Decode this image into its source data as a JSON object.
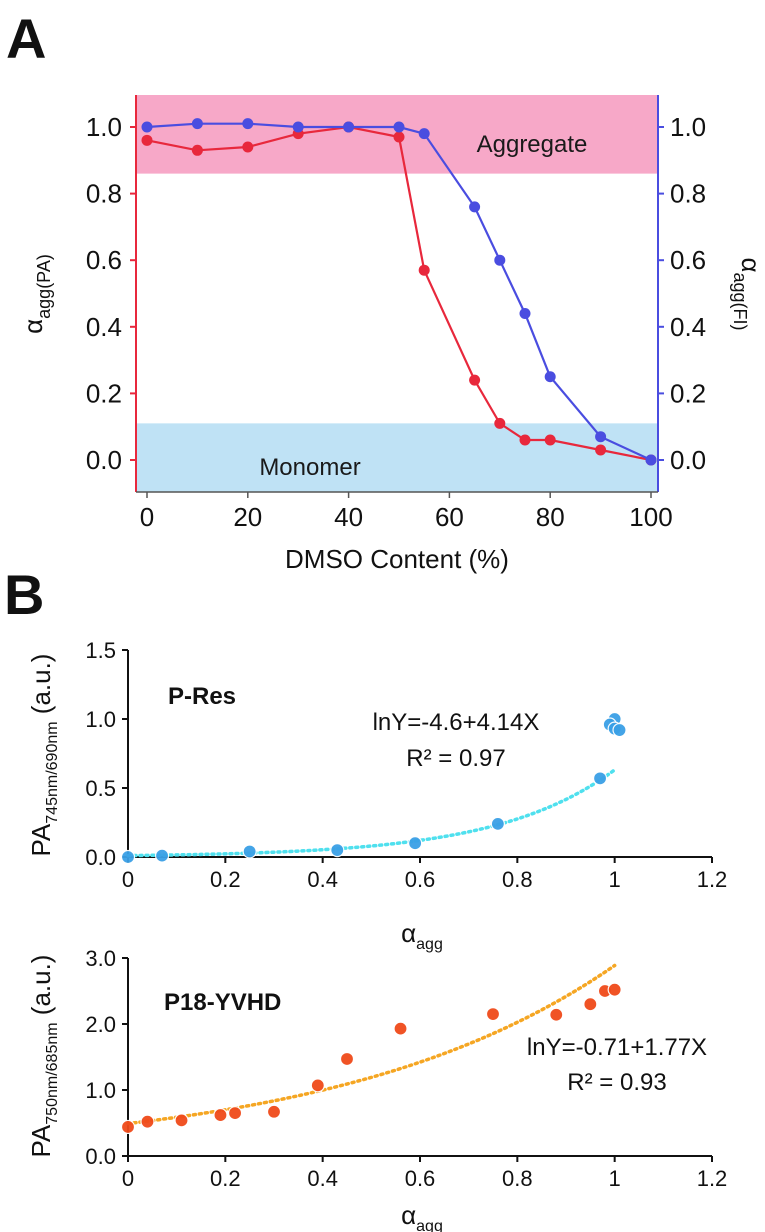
{
  "panels": {
    "a": "A",
    "b": "B"
  },
  "chart_data": [
    {
      "type": "line",
      "panel": "A",
      "xlabel": "DMSO Content (%)",
      "ylabel": {
        "base": "α",
        "sub": "agg(PA)"
      },
      "y2label": {
        "base": "α",
        "sub": "agg(FI)"
      },
      "xlim": [
        -2,
        101
      ],
      "ylim": [
        -0.1,
        1.1
      ],
      "xticks": [
        "0",
        "20",
        "40",
        "60",
        "80",
        "100"
      ],
      "yticks": [
        "0.0",
        "0.2",
        "0.4",
        "0.6",
        "0.8",
        "1.0"
      ],
      "left_axis_color": "#e8283c",
      "right_axis_color": "#4a4de0",
      "regions": [
        {
          "label": "Aggregate",
          "y_range": [
            0.86,
            1.1
          ],
          "color": "#f7a8c8"
        },
        {
          "label": "Monomer",
          "y_range": [
            -0.1,
            0.11
          ],
          "color": "#bfe2f5"
        }
      ],
      "series": [
        {
          "axis": "left",
          "color": "#e8283c",
          "x": [
            0,
            10,
            20,
            30,
            40,
            50,
            55,
            65,
            70,
            75,
            80,
            90,
            100
          ],
          "y": [
            0.96,
            0.93,
            0.94,
            0.98,
            1.0,
            0.97,
            0.57,
            0.24,
            0.11,
            0.06,
            0.06,
            0.03,
            0.0
          ]
        },
        {
          "axis": "right",
          "color": "#4a4de0",
          "x": [
            0,
            10,
            20,
            30,
            40,
            50,
            55,
            65,
            70,
            75,
            80,
            90,
            100
          ],
          "y": [
            1.0,
            1.01,
            1.01,
            1.0,
            1.0,
            1.0,
            0.98,
            0.76,
            0.6,
            0.44,
            0.25,
            0.07,
            0.0
          ]
        }
      ]
    },
    {
      "type": "scatter",
      "panel": "B",
      "series_name": "P-Res",
      "xlabel": {
        "base": "α",
        "sub": "agg"
      },
      "ylabel": {
        "base": "PA",
        "sub": "745nm/690nm",
        "suffix": " (a.u.)"
      },
      "xlim": [
        0,
        1.2
      ],
      "ylim": [
        0,
        1.5
      ],
      "xticks": [
        "0",
        "0.2",
        "0.4",
        "0.6",
        "0.8",
        "1",
        "1.2"
      ],
      "yticks": [
        "0.0",
        "0.5",
        "1.0",
        "1.5"
      ],
      "point_color": "#3aa0e6",
      "fit_color": "#4fe0ee",
      "fit": {
        "a": -4.6,
        "b": 4.14
      },
      "equation": "lnY=-4.6+4.14X",
      "r2": "R² = 0.97",
      "x": [
        0,
        0.07,
        0.25,
        0.43,
        0.59,
        0.76,
        0.97,
        1.0,
        0.99,
        1.0,
        1.01
      ],
      "y": [
        0.0,
        0.01,
        0.04,
        0.05,
        0.1,
        0.24,
        0.57,
        1.0,
        0.96,
        0.93,
        0.92
      ]
    },
    {
      "type": "scatter",
      "panel": "B",
      "series_name": "P18-YVHD",
      "xlabel": {
        "base": "α",
        "sub": "agg"
      },
      "ylabel": {
        "base": "PA",
        "sub": "750nm/685nm",
        "suffix": " (a.u.)"
      },
      "xlim": [
        0,
        1.2
      ],
      "ylim": [
        0,
        3.0
      ],
      "xticks": [
        "0",
        "0.2",
        "0.4",
        "0.6",
        "0.8",
        "1",
        "1.2"
      ],
      "yticks": [
        "0.0",
        "1.0",
        "2.0",
        "3.0"
      ],
      "point_color": "#f04a1a",
      "fit_color": "#f5a623",
      "fit": {
        "a": -0.71,
        "b": 1.77
      },
      "equation": "lnY=-0.71+1.77X",
      "r2": "R² = 0.93",
      "x": [
        0,
        0.04,
        0.11,
        0.19,
        0.22,
        0.3,
        0.39,
        0.45,
        0.56,
        0.75,
        0.88,
        0.95,
        0.98,
        1.0
      ],
      "y": [
        0.44,
        0.52,
        0.54,
        0.62,
        0.65,
        0.67,
        1.07,
        1.47,
        1.93,
        2.15,
        2.14,
        2.3,
        2.5,
        2.52
      ]
    }
  ]
}
